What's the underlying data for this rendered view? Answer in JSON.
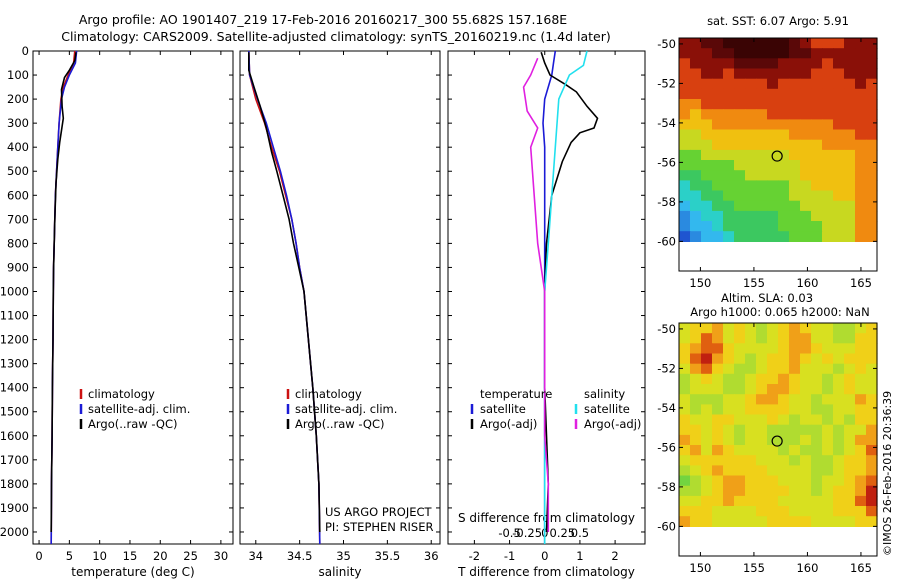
{
  "header": {
    "title_line1": "Argo profile: AO 1901407_219 17-Feb-2016 20160217_300 55.682S 157.168E",
    "title_line2": "Climatology: CARS2009. Satellite-adjusted climatology: synTS_20160219.nc (1.4d later)"
  },
  "project": {
    "line1": "US ARGO PROJECT",
    "line2": "PI: STEPHEN RISER"
  },
  "watermark": "©IMOS 26-Feb-2016 20:36:39",
  "colors": {
    "black": "#000000",
    "climatology": "#cc1111",
    "satellite": "#1b1bd6",
    "cyan": "#22e0ee",
    "magenta": "#e020e0"
  },
  "chart_data": [
    {
      "type": "line",
      "id": "temperature",
      "xlabel": "temperature (deg C)",
      "ylim": [
        2050,
        0
      ],
      "xlim": [
        -1,
        32
      ],
      "xticks": [
        0,
        5,
        10,
        15,
        20,
        25,
        30
      ],
      "yticks": [
        0,
        100,
        200,
        300,
        400,
        500,
        600,
        700,
        800,
        900,
        1000,
        1100,
        1200,
        1300,
        1400,
        1500,
        1600,
        1700,
        1800,
        1900,
        2000
      ],
      "legend": [
        "climatology",
        "satellite-adj. clim.",
        "Argo(..raw -QC)"
      ],
      "series": [
        {
          "name": "climatology",
          "color": "#cc1111",
          "points": [
            [
              5.9,
              0
            ],
            [
              5.7,
              50
            ],
            [
              4.8,
              100
            ],
            [
              4.0,
              150
            ],
            [
              3.6,
              200
            ],
            [
              3.3,
              300
            ],
            [
              3.1,
              400
            ],
            [
              2.9,
              500
            ],
            [
              2.7,
              600
            ],
            [
              2.6,
              700
            ],
            [
              2.5,
              800
            ],
            [
              2.4,
              900
            ],
            [
              2.35,
              1000
            ],
            [
              2.3,
              1200
            ],
            [
              2.2,
              1400
            ],
            [
              2.15,
              1600
            ],
            [
              2.05,
              1800
            ],
            [
              2.0,
              2050
            ]
          ]
        },
        {
          "name": "satellite-adj. clim.",
          "color": "#1b1bd6",
          "points": [
            [
              6.2,
              0
            ],
            [
              6.0,
              50
            ],
            [
              5.0,
              100
            ],
            [
              4.2,
              150
            ],
            [
              3.7,
              200
            ],
            [
              3.3,
              300
            ],
            [
              3.1,
              400
            ],
            [
              2.9,
              500
            ],
            [
              2.7,
              600
            ],
            [
              2.6,
              700
            ],
            [
              2.5,
              800
            ],
            [
              2.4,
              900
            ],
            [
              2.35,
              1000
            ],
            [
              2.3,
              1200
            ],
            [
              2.2,
              1400
            ],
            [
              2.15,
              1600
            ],
            [
              2.05,
              1800
            ],
            [
              2.0,
              2050
            ]
          ]
        },
        {
          "name": "Argo(..raw -QC)",
          "color": "#000000",
          "points": [
            [
              6.1,
              5
            ],
            [
              5.9,
              40
            ],
            [
              5.0,
              80
            ],
            [
              4.2,
              110
            ],
            [
              3.7,
              160
            ],
            [
              3.8,
              230
            ],
            [
              4.0,
              280
            ],
            [
              3.7,
              330
            ],
            [
              3.4,
              380
            ],
            [
              3.1,
              450
            ],
            [
              2.8,
              550
            ],
            [
              2.6,
              700
            ],
            [
              2.5,
              800
            ],
            [
              2.4,
              900
            ],
            [
              2.35,
              1000
            ],
            [
              2.3,
              1200
            ],
            [
              2.2,
              1400
            ],
            [
              2.15,
              1600
            ],
            [
              2.05,
              1800
            ],
            [
              2.0,
              2000
            ]
          ]
        }
      ]
    },
    {
      "type": "line",
      "id": "salinity",
      "xlabel": "salinity",
      "ylim": [
        2050,
        0
      ],
      "xlim": [
        33.82,
        36.1
      ],
      "xticks": [
        34,
        34.5,
        35,
        35.5,
        36
      ],
      "legend": [
        "climatology",
        "satellite-adj. clim.",
        "Argo(..raw -QC)"
      ],
      "series": [
        {
          "name": "climatology",
          "color": "#cc1111",
          "points": [
            [
              33.92,
              0
            ],
            [
              33.93,
              100
            ],
            [
              34.0,
              200
            ],
            [
              34.1,
              300
            ],
            [
              34.18,
              400
            ],
            [
              34.27,
              500
            ],
            [
              34.34,
              600
            ],
            [
              34.41,
              700
            ],
            [
              34.46,
              800
            ],
            [
              34.5,
              900
            ],
            [
              34.55,
              1000
            ],
            [
              34.6,
              1200
            ],
            [
              34.65,
              1400
            ],
            [
              34.69,
              1600
            ],
            [
              34.72,
              1800
            ],
            [
              34.73,
              2050
            ]
          ]
        },
        {
          "name": "satellite-adj. clim.",
          "color": "#1b1bd6",
          "points": [
            [
              33.92,
              0
            ],
            [
              33.93,
              100
            ],
            [
              34.02,
              200
            ],
            [
              34.12,
              300
            ],
            [
              34.2,
              400
            ],
            [
              34.28,
              500
            ],
            [
              34.35,
              600
            ],
            [
              34.41,
              700
            ],
            [
              34.46,
              800
            ],
            [
              34.5,
              900
            ],
            [
              34.55,
              1000
            ],
            [
              34.6,
              1200
            ],
            [
              34.65,
              1400
            ],
            [
              34.69,
              1600
            ],
            [
              34.72,
              1800
            ],
            [
              34.73,
              2050
            ]
          ]
        },
        {
          "name": "Argo(..raw -QC)",
          "color": "#000000",
          "points": [
            [
              33.92,
              5
            ],
            [
              33.92,
              80
            ],
            [
              33.98,
              150
            ],
            [
              34.05,
              230
            ],
            [
              34.12,
              320
            ],
            [
              34.18,
              420
            ],
            [
              34.24,
              500
            ],
            [
              34.31,
              600
            ],
            [
              34.38,
              700
            ],
            [
              34.43,
              800
            ],
            [
              34.49,
              900
            ],
            [
              34.55,
              1000
            ],
            [
              34.6,
              1200
            ],
            [
              34.65,
              1400
            ],
            [
              34.69,
              1600
            ],
            [
              34.72,
              1800
            ],
            [
              34.73,
              2000
            ]
          ]
        }
      ]
    },
    {
      "type": "line",
      "id": "difference",
      "xlabel": "T difference from climatology",
      "xlabel_top": "S difference from climatology",
      "ylim": [
        2050,
        0
      ],
      "xlim": [
        -2.75,
        2.85
      ],
      "xticks_bottom": [
        -2,
        -1,
        0,
        1,
        2
      ],
      "xticks_top": [
        "-0.5",
        "-0.25",
        "0",
        "0.25",
        "0.5"
      ],
      "legend_temperature_title": "temperature",
      "legend_salinity_title": "salinity",
      "legend": [
        "satellite",
        "Argo(-adj)",
        "satellite",
        "Argo(-adj)"
      ],
      "series": [
        {
          "name": "satellite",
          "quantity": "temperature",
          "color": "#1b1bd6",
          "points": [
            [
              0.3,
              0
            ],
            [
              0.25,
              50
            ],
            [
              0.2,
              100
            ],
            [
              0.0,
              200
            ],
            [
              -0.05,
              300
            ],
            [
              0,
              400
            ],
            [
              0,
              600
            ],
            [
              0,
              800
            ],
            [
              0,
              1000
            ],
            [
              0,
              1500
            ],
            [
              0,
              2050
            ]
          ]
        },
        {
          "name": "Argo(-adj)",
          "quantity": "temperature",
          "color": "#000000",
          "points": [
            [
              -0.1,
              5
            ],
            [
              0.0,
              50
            ],
            [
              0.15,
              100
            ],
            [
              0.6,
              140
            ],
            [
              0.9,
              170
            ],
            [
              1.2,
              230
            ],
            [
              1.5,
              280
            ],
            [
              1.4,
              320
            ],
            [
              1.0,
              340
            ],
            [
              0.75,
              380
            ],
            [
              0.5,
              460
            ],
            [
              0.2,
              600
            ],
            [
              0.05,
              800
            ],
            [
              0.0,
              1000
            ],
            [
              0,
              1400
            ],
            [
              0.05,
              1600
            ],
            [
              0.1,
              1800
            ],
            [
              0.05,
              2000
            ]
          ]
        },
        {
          "name": "satellite",
          "quantity": "salinity",
          "color": "#22e0ee",
          "points": [
            [
              0.6,
              0
            ],
            [
              0.55,
              60
            ],
            [
              0.35,
              100
            ],
            [
              0.2,
              200
            ],
            [
              0.15,
              400
            ],
            [
              0.1,
              600
            ],
            [
              0.05,
              800
            ],
            [
              0,
              1000
            ],
            [
              0,
              2050
            ]
          ]
        },
        {
          "name": "Argo(-adj)",
          "quantity": "salinity",
          "color": "#e020e0",
          "points": [
            [
              -0.1,
              30
            ],
            [
              -0.2,
              100
            ],
            [
              -0.3,
              150
            ],
            [
              -0.25,
              250
            ],
            [
              -0.1,
              320
            ],
            [
              -0.2,
              400
            ],
            [
              -0.15,
              600
            ],
            [
              -0.1,
              800
            ],
            [
              0,
              1000
            ],
            [
              0,
              1400
            ],
            [
              0,
              1600
            ],
            [
              0.05,
              1800
            ],
            [
              0.05,
              2000
            ]
          ]
        }
      ]
    },
    {
      "type": "heatmap",
      "id": "sst-map",
      "title": "sat. SST: 6.07 Argo: 5.91",
      "xlim": [
        148,
        166.5
      ],
      "ylim": [
        -61.5,
        -49.7
      ],
      "xticks": [
        150,
        155,
        160,
        165
      ],
      "yticks": [
        -50,
        -52,
        -54,
        -56,
        -58,
        -60
      ],
      "data_lat_range": [
        -60,
        -49.7
      ],
      "float_position": {
        "lon": 157.17,
        "lat": -55.68
      },
      "rows_north_to_south": [
        "ccddeeeeeedcbbbccc",
        "cccddeeeeeddcccccc",
        "bccccddddccccbcccc",
        "bbccbcccccccbbbccc",
        "bbbbbbbbcbbbbbbbcb",
        "bbbbbbbbbbbbbbbbbb",
        "aabbbbbbbbbbbbbbbb",
        "a9aaaaaabbbbbbbbbb",
        "999aaaaaaaaaaabbbb",
        "8899999999aaaaaabb",
        "8889999999999aaaaa",
        "7788888888999999aa",
        "7777788888899999aa",
        "6677778888899999aa",
        "5667777777889999aa",
        "5566777777888899aa",
        "4556677777788888aa",
        "3455666667778888aa",
        "3445666667777888aa",
        "2344566666777888aa"
      ]
    },
    {
      "type": "heatmap",
      "id": "sla-map",
      "title": "Altim. SLA: 0.03",
      "subtitle": "Argo h1000: 0.065 h2000: NaN",
      "xlim": [
        148,
        166.5
      ],
      "ylim": [
        -61.5,
        -49.7
      ],
      "xticks": [
        150,
        155,
        160,
        165
      ],
      "yticks": [
        -50,
        -52,
        -54,
        -56,
        -58,
        -60
      ],
      "data_lat_range": [
        -60,
        -49.7
      ],
      "float_position": {
        "lon": 157.17,
        "lat": -55.68
      },
      "rows_north_to_south": [
        "899a898789a9887789",
        "89ba898789aa887799",
        "9abb988889aa988899",
        "9bca987899a9898999",
        "8ab9877899a8887898",
        "789877899a98878988",
        "78887789aa98878988",
        "8777889aa9887888a9",
        "878788999988778899",
        "988998889878878799",
        "99898788777778788a",
        "a989878877787878aa",
        "9a8a9888878778789b",
        "89999998887877899a",
        "789a9999888877899a",
        "6789aa9998887889ab",
        "7789aa9999887899ac",
        "8899a99998888899bc",
        "99988889998888999b",
        "a99888889999888899"
      ]
    }
  ]
}
